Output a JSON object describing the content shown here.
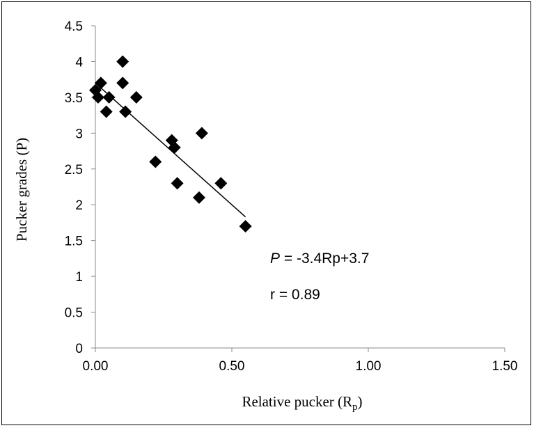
{
  "chart_data": {
    "type": "scatter",
    "title": "",
    "xlabel": "Relative pucker (R",
    "xlabel_sub": "p",
    "xlabel_close": ")",
    "ylabel": "Pucker  grades  (P)",
    "xlim": [
      0,
      1.5
    ],
    "ylim": [
      0,
      4.5
    ],
    "x_ticks": [
      "0.00",
      "0.50",
      "1.00",
      "1.50"
    ],
    "y_ticks": [
      "0",
      "0.5",
      "1",
      "1.5",
      "2",
      "2.5",
      "3",
      "3.5",
      "4",
      "4.5"
    ],
    "grid": false,
    "legend": "none",
    "series": [
      {
        "marker": "diamond",
        "color": "#000000",
        "points": [
          {
            "x": 0.0,
            "y": 3.6
          },
          {
            "x": 0.01,
            "y": 3.5
          },
          {
            "x": 0.02,
            "y": 3.7
          },
          {
            "x": 0.04,
            "y": 3.3
          },
          {
            "x": 0.05,
            "y": 3.5
          },
          {
            "x": 0.1,
            "y": 4.0
          },
          {
            "x": 0.1,
            "y": 3.7
          },
          {
            "x": 0.11,
            "y": 3.3
          },
          {
            "x": 0.15,
            "y": 3.5
          },
          {
            "x": 0.22,
            "y": 2.6
          },
          {
            "x": 0.28,
            "y": 2.9
          },
          {
            "x": 0.29,
            "y": 2.8
          },
          {
            "x": 0.3,
            "y": 2.3
          },
          {
            "x": 0.38,
            "y": 2.1
          },
          {
            "x": 0.39,
            "y": 3.0
          },
          {
            "x": 0.46,
            "y": 2.3
          },
          {
            "x": 0.55,
            "y": 1.7
          }
        ]
      }
    ],
    "trendline": {
      "type": "linear",
      "slope": -3.4,
      "intercept": 3.7,
      "x_range": [
        0.0,
        0.55
      ]
    },
    "annotations": {
      "equation_italic": "P",
      "equation_rest": " = -3.4Rp+3.7",
      "correlation": "r = 0.89"
    }
  }
}
